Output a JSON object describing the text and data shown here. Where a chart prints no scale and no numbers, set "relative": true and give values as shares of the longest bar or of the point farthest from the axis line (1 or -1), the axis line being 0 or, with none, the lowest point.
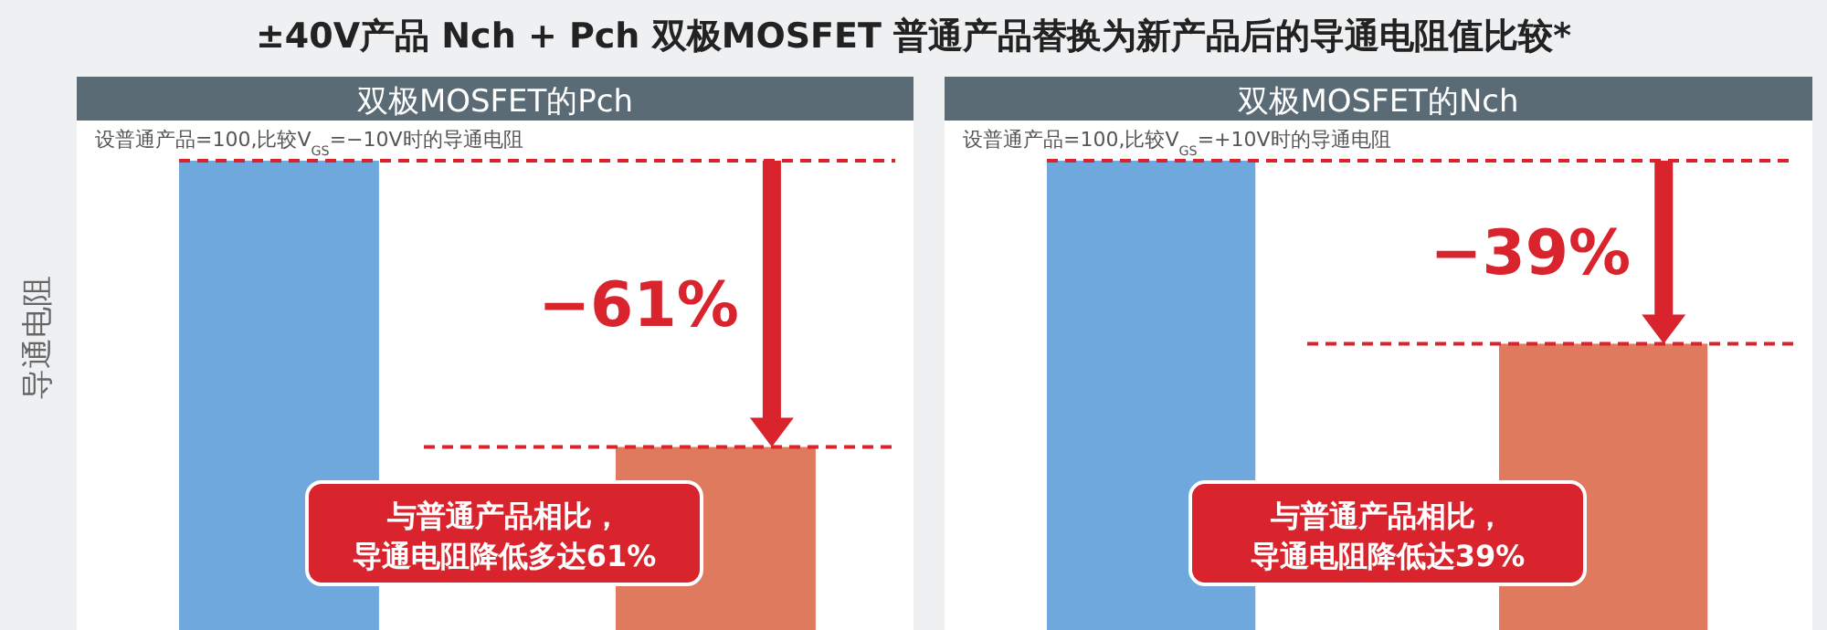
{
  "chart_data": [
    {
      "type": "bar",
      "title": "±40V产品 Nch + Pch 双极MOSFET 普通产品替换为新产品后的导通电阻值比较*",
      "subtitle": "双极MOSFET的Pch",
      "ylabel": "导通电阻",
      "relative": true,
      "categories": [
        null,
        null
      ],
      "values": [
        1,
        0.39
      ],
      "colors": [
        "#6fa8dc",
        "#e07a5f"
      ],
      "ref_lines": [
        {
          "axis": "y",
          "value": 1,
          "color": "#d9232d",
          "line_style": "dashed"
        },
        {
          "axis": "y",
          "value": 0.39,
          "color": "#d9232d",
          "line_style": "dashed"
        }
      ],
      "annotations": [
        "设普通产品=100,比较V$_{GS}$=−10V时的导通电阻",
        "−61%",
        "与普通产品相比，",
        "导通电阻降低多达61%"
      ]
    },
    {
      "type": "bar",
      "subtitle": "双极MOSFET的Nch",
      "relative": true,
      "categories": [
        null,
        null
      ],
      "values": [
        1,
        0.61
      ],
      "colors": [
        "#6fa8dc",
        "#e07a5f"
      ],
      "ref_lines": [
        {
          "axis": "y",
          "value": 1,
          "color": "#d9232d",
          "line_style": "dashed"
        },
        {
          "axis": "y",
          "value": 0.61,
          "color": "#d9232d",
          "line_style": "dashed"
        }
      ],
      "annotations": [
        "设普通产品=100,比较V$_{GS}$=+10V时的导通电阻",
        "−39%",
        "与普通产品相比，",
        "导通电阻降低达39%"
      ]
    }
  ]
}
